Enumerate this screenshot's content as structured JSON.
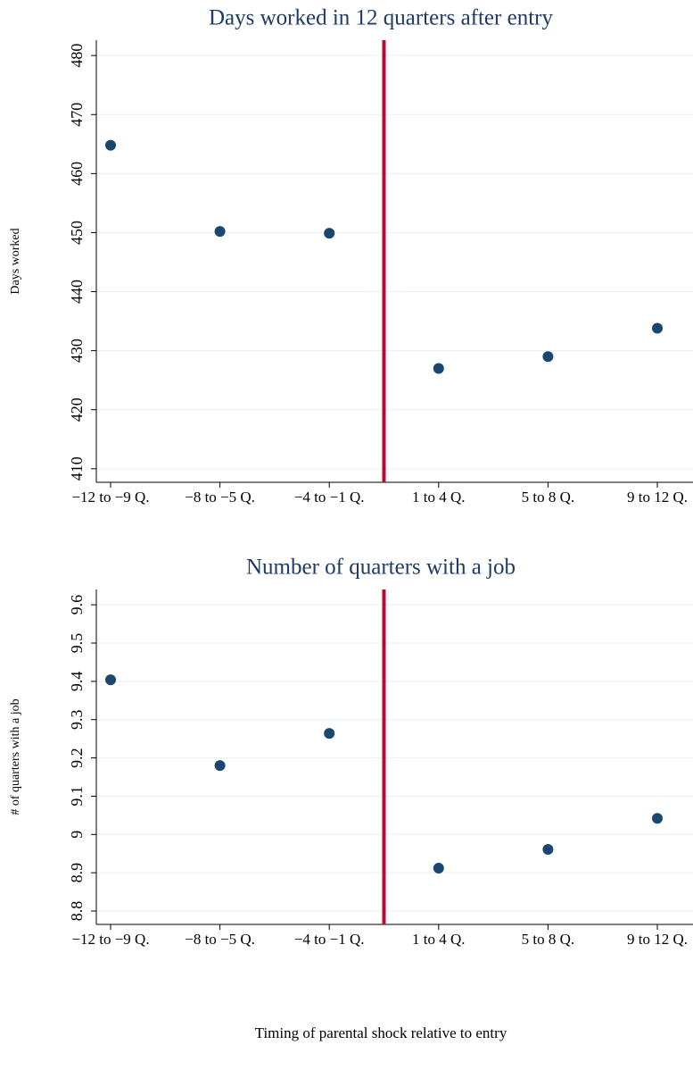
{
  "chart_data": [
    {
      "type": "scatter",
      "title": "Days worked in 12 quarters after entry",
      "ylabel": "Days worked",
      "categories": [
        "−12 to −9 Q.",
        "−8 to −5 Q.",
        "−4 to −1 Q.",
        "1 to 4 Q.",
        "5 to 8 Q.",
        "9 to 12 Q."
      ],
      "values": [
        464.8,
        450.2,
        449.9,
        427.0,
        429.0,
        433.8
      ],
      "color": "#1a476f",
      "ylim": [
        407.7,
        482.6
      ],
      "yticks": [
        410,
        420,
        430,
        440,
        450,
        460,
        470,
        480
      ],
      "grid": true,
      "vline_color": "#c10534"
    },
    {
      "type": "scatter",
      "title": "Number of quarters with a job",
      "ylabel": "# of quarters with a job",
      "categories": [
        "−12 to −9 Q.",
        "−8 to −5 Q.",
        "−4 to −1 Q.",
        "1 to 4 Q.",
        "5 to 8 Q.",
        "9 to 12 Q."
      ],
      "values": [
        9.404,
        9.18,
        9.264,
        8.912,
        8.961,
        9.042
      ],
      "color": "#1a476f",
      "ylim": [
        8.765,
        9.64
      ],
      "yticks": [
        8.8,
        8.9,
        9,
        9.1,
        9.2,
        9.3,
        9.4,
        9.5,
        9.6
      ],
      "grid": true,
      "vline_color": "#c10534"
    }
  ],
  "x_label": "Timing of parental shock relative to entry"
}
